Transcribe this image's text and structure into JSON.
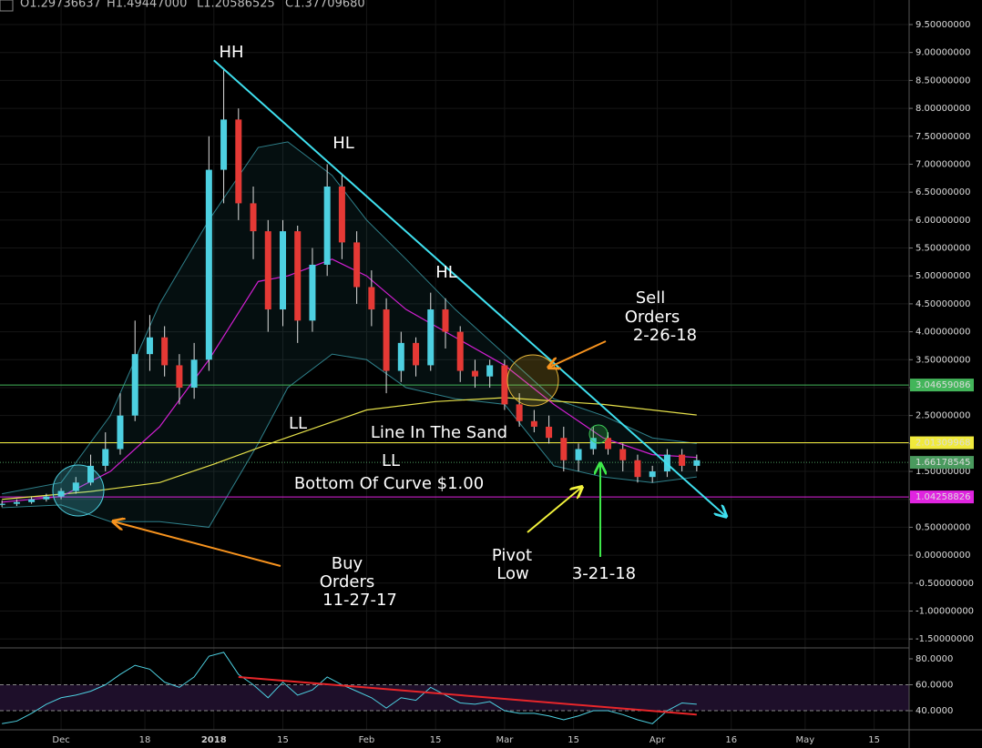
{
  "chart_data": {
    "type": "candlestick",
    "header": [
      "O1.29736637",
      "H1.49447000",
      "L1.20586525",
      "C1.37709680"
    ],
    "x": [
      -12,
      -9,
      -6,
      -3,
      0,
      3,
      6,
      9,
      12,
      15,
      18,
      21,
      24,
      27,
      30,
      33,
      36,
      39,
      42,
      45,
      48,
      51,
      54,
      57,
      60,
      63,
      66,
      69,
      72,
      75,
      78,
      81,
      84,
      87,
      90,
      93,
      96,
      99,
      102,
      105,
      108,
      111,
      114,
      117,
      120,
      123,
      126,
      129
    ],
    "open": [
      0.9,
      0.92,
      0.95,
      1.0,
      1.05,
      1.15,
      1.3,
      1.6,
      1.9,
      2.5,
      3.6,
      3.9,
      3.4,
      3.0,
      3.5,
      6.9,
      7.8,
      6.3,
      5.8,
      4.4,
      5.8,
      4.2,
      5.2,
      6.6,
      5.6,
      4.8,
      4.4,
      3.3,
      3.8,
      3.4,
      4.4,
      4.0,
      3.3,
      3.2,
      3.4,
      2.7,
      2.4,
      2.3,
      2.1,
      1.7,
      1.9,
      2.1,
      1.9,
      1.7,
      1.4,
      1.5,
      1.8,
      1.6
    ],
    "high": [
      0.98,
      1.0,
      1.05,
      1.1,
      1.2,
      1.4,
      1.8,
      2.2,
      2.9,
      4.2,
      4.3,
      4.1,
      3.6,
      3.8,
      7.5,
      8.7,
      8.0,
      6.6,
      6.0,
      6.0,
      5.9,
      5.5,
      7.0,
      6.8,
      5.8,
      5.1,
      4.6,
      4.0,
      3.9,
      4.7,
      4.6,
      4.1,
      3.5,
      3.5,
      3.5,
      2.9,
      2.6,
      2.5,
      2.3,
      2.0,
      2.3,
      2.2,
      2.0,
      1.8,
      1.6,
      1.9,
      1.9,
      1.8
    ],
    "low": [
      0.86,
      0.88,
      0.92,
      0.96,
      1.0,
      1.1,
      1.25,
      1.5,
      1.8,
      2.4,
      3.3,
      3.2,
      2.7,
      2.8,
      3.3,
      6.3,
      6.0,
      5.3,
      4.0,
      4.1,
      3.8,
      4.0,
      5.0,
      5.3,
      4.5,
      4.1,
      2.9,
      3.1,
      3.2,
      3.3,
      3.7,
      3.1,
      3.0,
      3.0,
      2.6,
      2.3,
      2.2,
      2.0,
      1.5,
      1.5,
      1.8,
      1.8,
      1.5,
      1.3,
      1.3,
      1.4,
      1.5,
      1.5
    ],
    "close": [
      0.92,
      0.95,
      1.0,
      1.05,
      1.15,
      1.3,
      1.6,
      1.9,
      2.5,
      3.6,
      3.9,
      3.4,
      3.0,
      3.5,
      6.9,
      7.8,
      6.3,
      5.8,
      4.4,
      5.8,
      4.2,
      5.2,
      6.6,
      5.6,
      4.8,
      4.4,
      3.3,
      3.8,
      3.4,
      4.4,
      4.0,
      3.3,
      3.2,
      3.4,
      2.7,
      2.4,
      2.3,
      2.1,
      1.7,
      1.9,
      2.1,
      1.9,
      1.7,
      1.4,
      1.5,
      1.8,
      1.6,
      1.7
    ],
    "up_color": "#4dd0e1",
    "down_color": "#e53935",
    "grid": true,
    "xlim": [
      -12.4,
      172.1
    ],
    "xticks": [
      {
        "value": 0,
        "label": "Dec"
      },
      {
        "value": 17,
        "label": "18"
      },
      {
        "value": 31,
        "label": "2018"
      },
      {
        "value": 45,
        "label": "15"
      },
      {
        "value": 62,
        "label": "Feb"
      },
      {
        "value": 76,
        "label": "15"
      },
      {
        "value": 90,
        "label": "Mar"
      },
      {
        "value": 104,
        "label": "15"
      },
      {
        "value": 121,
        "label": "Apr"
      },
      {
        "value": 136,
        "label": "16"
      },
      {
        "value": 151,
        "label": "May"
      },
      {
        "value": 165,
        "label": "15"
      }
    ],
    "ylim": [
      -1.66,
      9.94
    ],
    "yticks": [
      {
        "value": 9.5,
        "label": "9.50000000"
      },
      {
        "value": 9,
        "label": "9.00000000"
      },
      {
        "value": 8.5,
        "label": "8.50000000"
      },
      {
        "value": 8,
        "label": "8.00000000"
      },
      {
        "value": 7.5,
        "label": "7.50000000"
      },
      {
        "value": 7,
        "label": "7.00000000"
      },
      {
        "value": 6.5,
        "label": "6.50000000"
      },
      {
        "value": 6,
        "label": "6.00000000"
      },
      {
        "value": 5.5,
        "label": "5.50000000"
      },
      {
        "value": 5,
        "label": "5.00000000"
      },
      {
        "value": 4.5,
        "label": "4.50000000"
      },
      {
        "value": 4,
        "label": "4.00000000"
      },
      {
        "value": 3.5,
        "label": "3.50000000"
      },
      {
        "value": 3,
        "label": "3.00000000"
      },
      {
        "value": 2.5,
        "label": "2.50000000"
      },
      {
        "value": 2,
        "label": "2.00000000"
      },
      {
        "value": 1.5,
        "label": "1.50000000"
      },
      {
        "value": 1,
        "label": "1.00000000"
      },
      {
        "value": 0.5,
        "label": "0.50000000"
      },
      {
        "value": 0,
        "label": "0.00000000"
      },
      {
        "value": -0.5,
        "label": "-0.50000000"
      },
      {
        "value": -1,
        "label": "-1.00000000"
      },
      {
        "value": -1.5,
        "label": "-1.50000000"
      }
    ],
    "bands": {
      "color": "#4dd0e1",
      "x": [
        -12,
        0,
        10,
        20,
        30,
        40,
        46,
        55,
        62,
        70,
        80,
        90,
        100,
        110,
        120,
        129
      ],
      "upper": [
        1.1,
        1.3,
        2.5,
        4.5,
        6.0,
        7.3,
        7.4,
        6.8,
        6.0,
        5.3,
        4.4,
        3.6,
        2.8,
        2.5,
        2.1,
        2.0
      ],
      "lower": [
        0.85,
        0.9,
        0.6,
        0.6,
        0.5,
        2.0,
        3.0,
        3.6,
        3.5,
        3.0,
        2.8,
        2.7,
        1.6,
        1.4,
        1.3,
        1.4
      ]
    },
    "moving_averages": [
      {
        "color": "#e6e14a",
        "x": [
          -12,
          6,
          20,
          31,
          44,
          62,
          76,
          90,
          110,
          129
        ],
        "values": [
          1.0,
          1.14,
          1.3,
          1.63,
          2.05,
          2.6,
          2.75,
          2.82,
          2.7,
          2.51
        ]
      },
      {
        "color": "#d21fd2",
        "x": [
          -12,
          0,
          10,
          20,
          30,
          40,
          46,
          55,
          62,
          70,
          80,
          90,
          100,
          110,
          120,
          129
        ],
        "values": [
          0.95,
          1.05,
          1.5,
          2.3,
          3.5,
          4.9,
          5.0,
          5.3,
          5.0,
          4.4,
          3.9,
          3.4,
          2.7,
          2.1,
          1.8,
          1.75
        ]
      }
    ],
    "trendline": {
      "color": "#3fe0ef",
      "x": [
        31,
        135
      ],
      "values": [
        8.86,
        0.69
      ]
    },
    "price_lines": [
      {
        "value": 3.04659086,
        "color": "#43b55a"
      },
      {
        "value": 2.01309968,
        "color": "#f0ea3c"
      },
      {
        "value": 1.66178545,
        "color": "#4a9a5e"
      },
      {
        "value": 1.04258826,
        "color": "#e024e0"
      }
    ],
    "annotations": [
      "HH",
      "HL",
      "HL",
      "LL",
      "Line In The Sand",
      "LL",
      "Bottom Of Curve $1.00",
      "Sell",
      "Orders",
      "2-26-18",
      "Pivot",
      "Low",
      "3-21-18",
      "Buy",
      "Orders",
      "11-27-17"
    ],
    "rsi": {
      "color": "#4dd0e1",
      "ylim": [
        25.3,
        87
      ],
      "yticks": [
        {
          "value": 80,
          "label": "80.0000"
        },
        {
          "value": 60,
          "label": "60.0000"
        },
        {
          "value": 40,
          "label": "40.0000"
        }
      ],
      "levels": [
        40,
        60
      ],
      "values": [
        30,
        32,
        38,
        45,
        50,
        52,
        55,
        60,
        68,
        75,
        72,
        62,
        58,
        66,
        82,
        85,
        68,
        60,
        50,
        62,
        52,
        56,
        66,
        60,
        55,
        50,
        42,
        50,
        48,
        58,
        52,
        46,
        45,
        47,
        40,
        38,
        38,
        36,
        33,
        36,
        40,
        40,
        37,
        33,
        30,
        40,
        46,
        45
      ],
      "divergence": {
        "color": "#e8262a",
        "x": [
          36,
          129
        ],
        "values": [
          66,
          37
        ]
      }
    }
  }
}
